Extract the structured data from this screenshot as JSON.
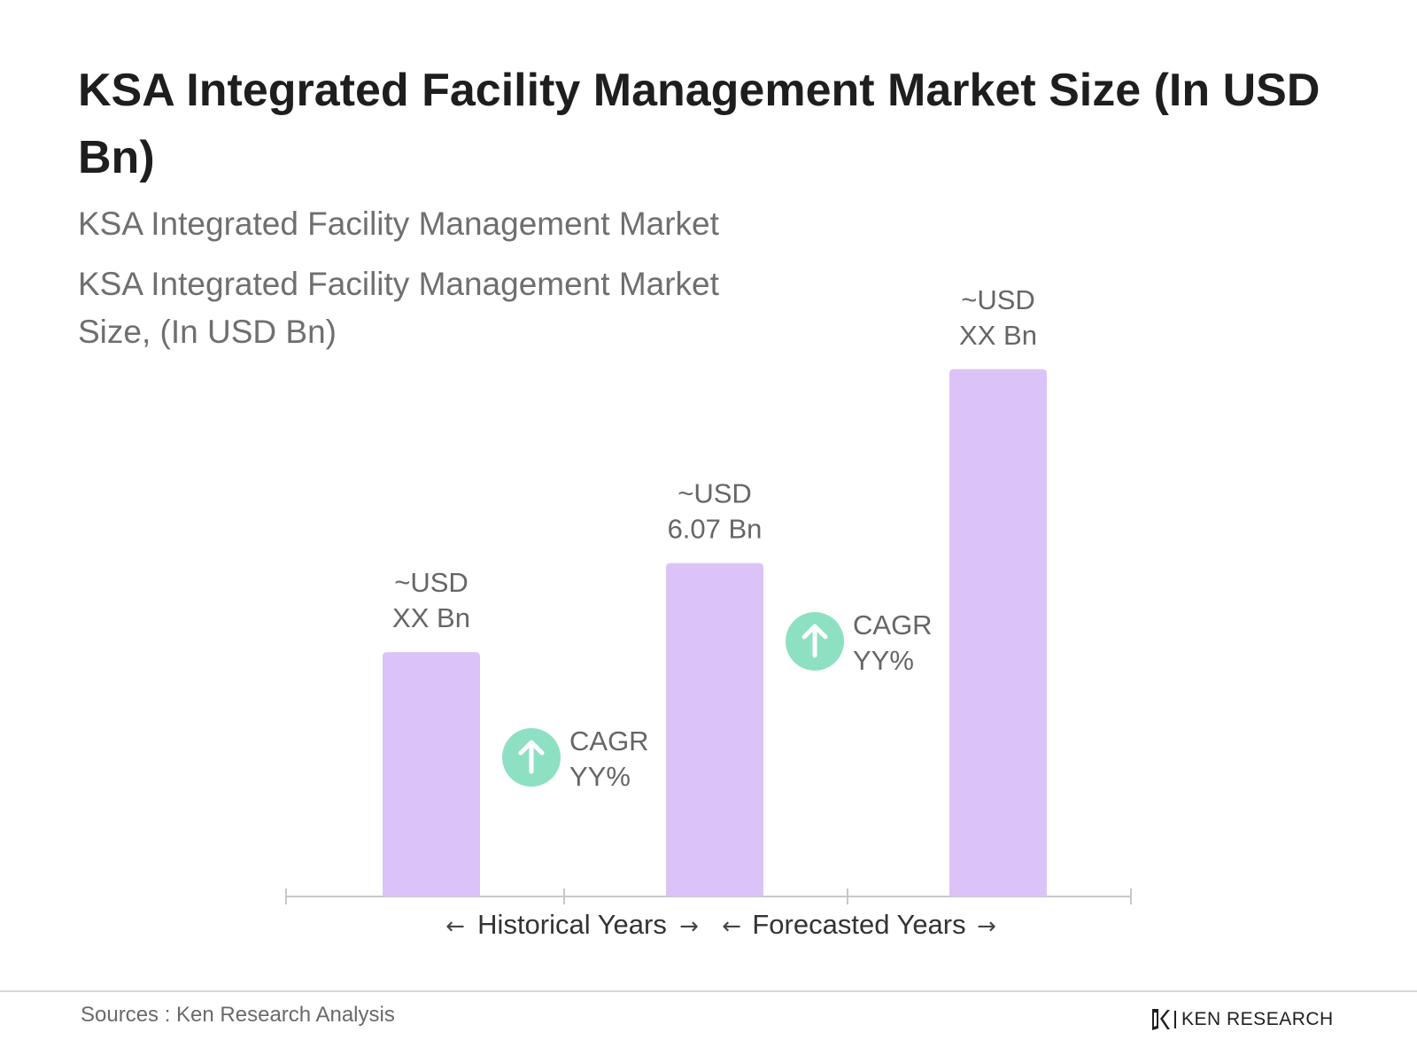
{
  "header": {
    "title": "KSA Integrated Facility Management Market Size (In USD Bn)",
    "subtitle_1": "KSA Integrated Facility Management Market",
    "subtitle_2": "KSA Integrated Facility Management Market Size, (In USD Bn)"
  },
  "colors": {
    "bar": "#dcc3f7",
    "cagr_circle": "#8ee0c3",
    "axis": "#c8c8c8",
    "title": "#1e1e1e",
    "muted_text": "#6f6f6f"
  },
  "chart_data": {
    "type": "bar",
    "title": "KSA Integrated Facility Management Market Size (In USD Bn)",
    "categories": [
      "",
      "",
      ""
    ],
    "values": [
      4.45,
      6.07,
      9.6
    ],
    "value_labels": [
      [
        "~USD",
        "XX Bn"
      ],
      [
        "~USD",
        "6.07 Bn"
      ],
      [
        "~USD",
        "XX Bn"
      ]
    ],
    "ylim": [
      0,
      10
    ],
    "grid": false,
    "legend": "none",
    "annotations": [
      {
        "text": [
          "CAGR",
          "YY%"
        ],
        "icon": "arrow-up-icon",
        "between": [
          0,
          1
        ]
      },
      {
        "text": [
          "CAGR",
          "YY%"
        ],
        "icon": "arrow-up-icon",
        "between": [
          1,
          2
        ]
      }
    ],
    "periods": [
      {
        "label": "Historical Years",
        "left_arrow": "🡐",
        "right_arrow": "🡒"
      },
      {
        "label": "Forecasted Years",
        "left_arrow": "🡐",
        "right_arrow": "🡒"
      }
    ]
  },
  "footer": {
    "sources": "Sources : Ken Research Analysis",
    "brand_name": "KEN RESEARCH",
    "logo_icon": "ken-research-logo-icon"
  }
}
